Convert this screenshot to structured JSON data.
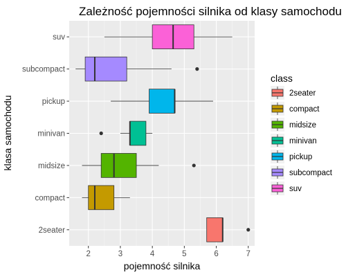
{
  "chart_data": {
    "type": "boxplot",
    "title": "Zależność pojemności silnika od klasy samochodu",
    "xlabel": "pojemność silnika",
    "ylabel": "klasa samochodu",
    "xlim": [
      1.4,
      7.2
    ],
    "xticks": [
      2,
      3,
      4,
      5,
      6,
      7
    ],
    "grid": true,
    "legend": {
      "title": "class",
      "placement": "right"
    },
    "categories": [
      "2seater",
      "compact",
      "midsize",
      "minivan",
      "pickup",
      "subcompact",
      "suv"
    ],
    "series": [
      {
        "name": "2seater",
        "color": "#F8766D",
        "min": 5.7,
        "q1": 5.7,
        "median": 6.2,
        "q3": 6.2,
        "max": 6.2,
        "outliers": [
          7.0
        ]
      },
      {
        "name": "compact",
        "color": "#C49A00",
        "min": 1.8,
        "q1": 2.0,
        "median": 2.2,
        "q3": 2.8,
        "max": 3.3,
        "outliers": []
      },
      {
        "name": "midsize",
        "color": "#53B400",
        "min": 1.8,
        "q1": 2.4,
        "median": 2.8,
        "q3": 3.5,
        "max": 4.2,
        "outliers": [
          5.3
        ]
      },
      {
        "name": "minivan",
        "color": "#00C094",
        "min": 3.0,
        "q1": 3.3,
        "median": 3.3,
        "q3": 3.8,
        "max": 4.0,
        "outliers": [
          2.4
        ]
      },
      {
        "name": "pickup",
        "color": "#00B6EB",
        "min": 2.7,
        "q1": 3.9,
        "median": 4.7,
        "q3": 4.7,
        "max": 5.9,
        "outliers": []
      },
      {
        "name": "subcompact",
        "color": "#A58AFF",
        "min": 1.6,
        "q1": 1.9,
        "median": 2.2,
        "q3": 3.2,
        "max": 4.6,
        "outliers": [
          5.4
        ]
      },
      {
        "name": "suv",
        "color": "#FB61D7",
        "min": 2.5,
        "q1": 4.0,
        "median": 4.65,
        "q3": 5.3,
        "max": 6.5,
        "outliers": []
      }
    ]
  }
}
